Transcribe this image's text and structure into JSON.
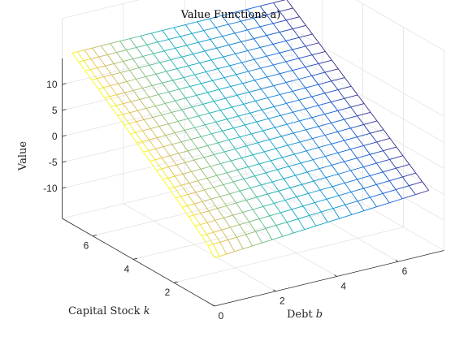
{
  "chart_data": {
    "type": "surface-mesh",
    "title": "Value Functions a)",
    "xlabel_text": "Debt ",
    "xlabel_var": "b",
    "ylabel_text": "Capital Stock ",
    "ylabel_var": "k",
    "zlabel": "Value",
    "x_ticks": [
      "0",
      "2",
      "4",
      "6"
    ],
    "y_ticks": [
      "2",
      "4",
      "6"
    ],
    "z_ticks": [
      "-10",
      "-5",
      "0",
      "5",
      "10"
    ],
    "x_range": [
      0,
      7.5
    ],
    "y_range": [
      0,
      7.5
    ],
    "z_range": [
      -15,
      15
    ],
    "grid": true,
    "colormap": "parula",
    "surface_corners": {
      "b0_k0": -6.5,
      "b7_k0": -3.5,
      "b0_k7": 14,
      "b7_k7": 17.5
    },
    "mesh": {
      "b_lines": 20,
      "k_lines": 22,
      "b_spacing": "denser near b = 0"
    }
  }
}
